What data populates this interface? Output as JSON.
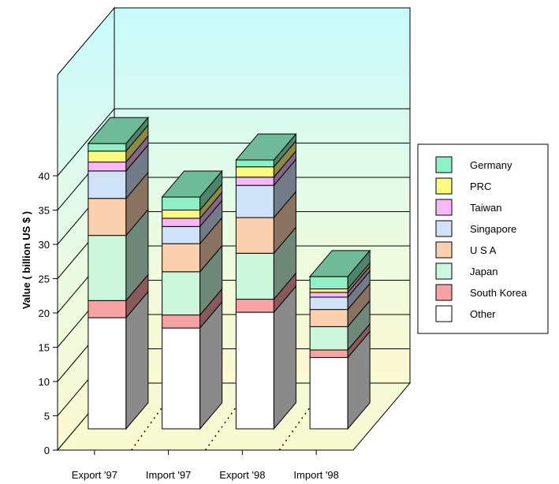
{
  "chart_data": {
    "type": "bar",
    "stacked": true,
    "three_d": true,
    "title": "",
    "xlabel": "",
    "ylabel": "Value ( billion US $ )",
    "ylim": [
      0,
      40
    ],
    "yticks": [
      0,
      5,
      10,
      15,
      20,
      25,
      30,
      35,
      40
    ],
    "grid": true,
    "legend_position": "right",
    "categories": [
      "Export '97",
      "Import '97",
      "Export '98",
      "Import '98"
    ],
    "series": [
      {
        "name": "Other",
        "color": "#ffffff",
        "values": [
          16.2,
          14.7,
          17.0,
          10.4
        ]
      },
      {
        "name": "South Korea",
        "color": "#f7a3a3",
        "values": [
          2.5,
          1.9,
          1.9,
          1.1
        ]
      },
      {
        "name": "Japan",
        "color": "#ccf7dd",
        "values": [
          9.5,
          6.3,
          6.7,
          3.4
        ]
      },
      {
        "name": "U S A",
        "color": "#fbd0ae",
        "values": [
          5.4,
          4.1,
          5.2,
          2.5
        ]
      },
      {
        "name": "Singapore",
        "color": "#cfe2f8",
        "values": [
          4.0,
          2.5,
          4.7,
          1.8
        ]
      },
      {
        "name": "Taiwan",
        "color": "#f6b8f6",
        "values": [
          1.3,
          1.2,
          1.2,
          0.7
        ]
      },
      {
        "name": "PRC",
        "color": "#fafa80",
        "values": [
          1.6,
          1.2,
          1.5,
          0.5
        ]
      },
      {
        "name": "Germany",
        "color": "#8ef0c4",
        "values": [
          1.1,
          1.9,
          1.0,
          1.8
        ]
      }
    ],
    "legend_order": [
      "Germany",
      "PRC",
      "Taiwan",
      "Singapore",
      "U S A",
      "Japan",
      "South Korea",
      "Other"
    ]
  }
}
